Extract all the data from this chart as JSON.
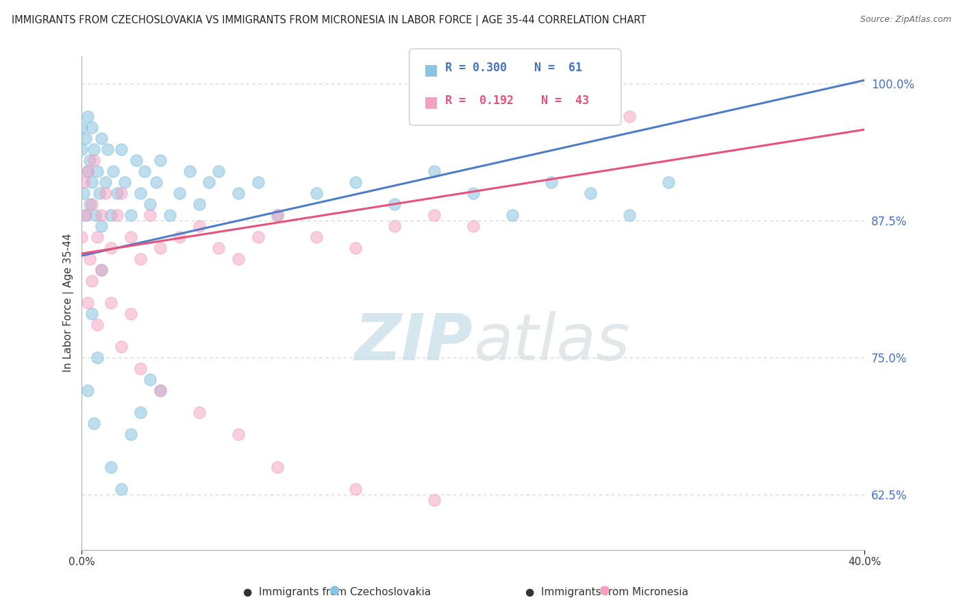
{
  "title": "IMMIGRANTS FROM CZECHOSLOVAKIA VS IMMIGRANTS FROM MICRONESIA IN LABOR FORCE | AGE 35-44 CORRELATION CHART",
  "source": "Source: ZipAtlas.com",
  "ylabel": "In Labor Force | Age 35-44",
  "xmin": 0.0,
  "xmax": 0.4,
  "ymin": 0.575,
  "ymax": 1.025,
  "yticks": [
    0.625,
    0.75,
    0.875,
    1.0
  ],
  "ytick_labels": [
    "62.5%",
    "75.0%",
    "87.5%",
    "100.0%"
  ],
  "xticks": [
    0.0,
    0.4
  ],
  "xtick_labels": [
    "0.0%",
    "40.0%"
  ],
  "legend_r1": "R = 0.300",
  "legend_n1": "N =  61",
  "legend_r2": "R =  0.192",
  "legend_n2": "N =  43",
  "color_czech": "#89c4e1",
  "color_micro": "#f4a0c0",
  "trendline_color_czech": "#4d7cc9",
  "trendline_color_micro": "#e8517a",
  "ytick_color": "#4472c4",
  "background_color": "#ffffff",
  "grid_color": "#d0d0d0",
  "watermark_color": "#d8e8f0",
  "czech_x": [
    0.0,
    0.0,
    0.001,
    0.002,
    0.002,
    0.003,
    0.003,
    0.004,
    0.004,
    0.005,
    0.005,
    0.006,
    0.007,
    0.008,
    0.009,
    0.01,
    0.01,
    0.012,
    0.013,
    0.015,
    0.016,
    0.018,
    0.02,
    0.022,
    0.025,
    0.028,
    0.03,
    0.032,
    0.035,
    0.038,
    0.04,
    0.045,
    0.05,
    0.055,
    0.06,
    0.065,
    0.07,
    0.08,
    0.09,
    0.1,
    0.12,
    0.14,
    0.16,
    0.18,
    0.2,
    0.22,
    0.24,
    0.26,
    0.28,
    0.3,
    0.01,
    0.005,
    0.008,
    0.003,
    0.006,
    0.015,
    0.02,
    0.025,
    0.03,
    0.035,
    0.04
  ],
  "czech_y": [
    0.94,
    0.96,
    0.9,
    0.95,
    0.88,
    0.92,
    0.97,
    0.93,
    0.89,
    0.91,
    0.96,
    0.94,
    0.88,
    0.92,
    0.9,
    0.95,
    0.87,
    0.91,
    0.94,
    0.88,
    0.92,
    0.9,
    0.94,
    0.91,
    0.88,
    0.93,
    0.9,
    0.92,
    0.89,
    0.91,
    0.93,
    0.88,
    0.9,
    0.92,
    0.89,
    0.91,
    0.92,
    0.9,
    0.91,
    0.88,
    0.9,
    0.91,
    0.89,
    0.92,
    0.9,
    0.88,
    0.91,
    0.9,
    0.88,
    0.91,
    0.83,
    0.79,
    0.75,
    0.72,
    0.69,
    0.65,
    0.63,
    0.68,
    0.7,
    0.73,
    0.72
  ],
  "micro_x": [
    0.0,
    0.001,
    0.002,
    0.003,
    0.004,
    0.005,
    0.006,
    0.008,
    0.01,
    0.012,
    0.015,
    0.018,
    0.02,
    0.025,
    0.03,
    0.035,
    0.04,
    0.05,
    0.06,
    0.07,
    0.08,
    0.09,
    0.1,
    0.12,
    0.14,
    0.16,
    0.18,
    0.2,
    0.003,
    0.005,
    0.008,
    0.01,
    0.015,
    0.02,
    0.025,
    0.03,
    0.04,
    0.06,
    0.08,
    0.1,
    0.14,
    0.18,
    0.28
  ],
  "micro_y": [
    0.86,
    0.91,
    0.88,
    0.92,
    0.84,
    0.89,
    0.93,
    0.86,
    0.88,
    0.9,
    0.85,
    0.88,
    0.9,
    0.86,
    0.84,
    0.88,
    0.85,
    0.86,
    0.87,
    0.85,
    0.84,
    0.86,
    0.88,
    0.86,
    0.85,
    0.87,
    0.88,
    0.87,
    0.8,
    0.82,
    0.78,
    0.83,
    0.8,
    0.76,
    0.79,
    0.74,
    0.72,
    0.7,
    0.68,
    0.65,
    0.63,
    0.62,
    0.97
  ]
}
